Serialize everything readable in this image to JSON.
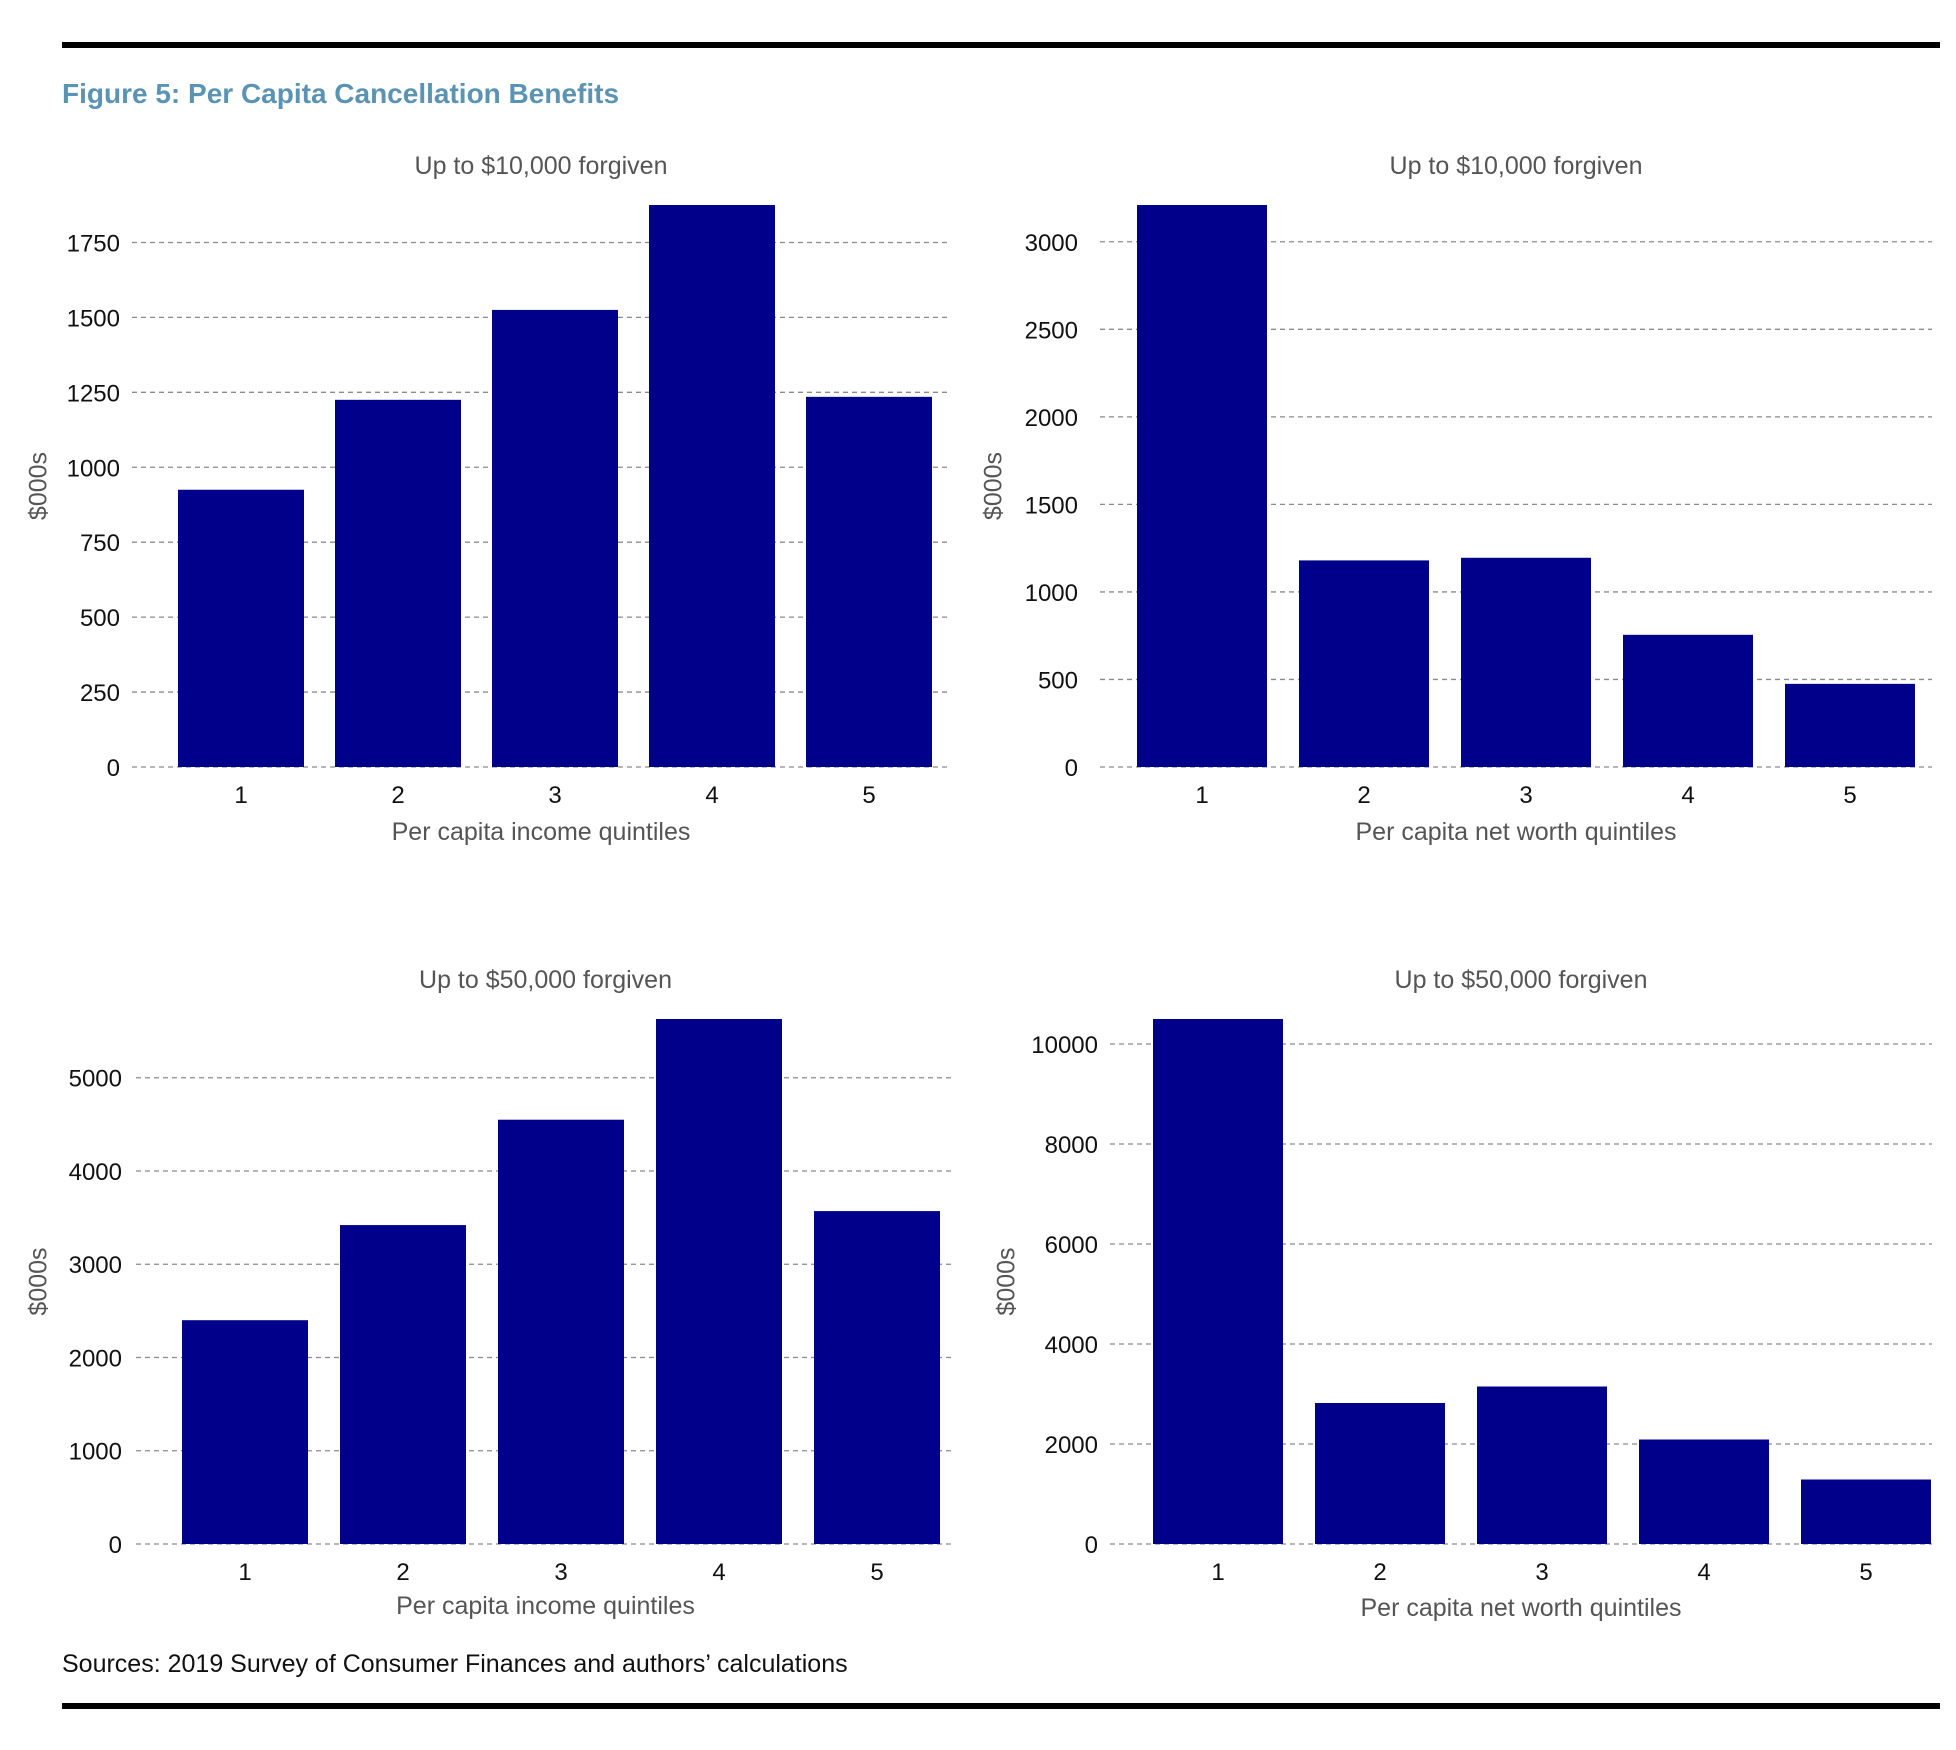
{
  "figure_title": "Figure 5: Per Capita Cancellation Benefits",
  "sources": "Sources: 2019 Survey of Consumer Finances and authors’ calculations",
  "colors": {
    "bar": "#00008b",
    "title": "#5b93b3",
    "grid": "#8c8c8c",
    "label": "#555555"
  },
  "chart_data": [
    {
      "type": "bar",
      "title": "Up to $10,000 forgiven",
      "xlabel": "Per capita income quintiles",
      "ylabel": "$000s",
      "categories": [
        "1",
        "2",
        "3",
        "4",
        "5"
      ],
      "values": [
        925,
        1225,
        1525,
        1875,
        1235
      ],
      "ylim": [
        0,
        1875
      ],
      "yticks": [
        0,
        250,
        500,
        750,
        1000,
        1250,
        1500,
        1750
      ],
      "grid": true
    },
    {
      "type": "bar",
      "title": "Up to $10,000 forgiven",
      "xlabel": "Per capita net worth quintiles",
      "ylabel": "$000s",
      "categories": [
        "1",
        "2",
        "3",
        "4",
        "5"
      ],
      "values": [
        3210,
        1180,
        1195,
        755,
        475
      ],
      "ylim": [
        0,
        3210
      ],
      "yticks": [
        0,
        500,
        1000,
        1500,
        2000,
        2500,
        3000
      ],
      "grid": true
    },
    {
      "type": "bar",
      "title": "Up to $50,000 forgiven",
      "xlabel": "Per capita income quintiles",
      "ylabel": "$000s",
      "categories": [
        "1",
        "2",
        "3",
        "4",
        "5"
      ],
      "values": [
        2400,
        3420,
        4550,
        5630,
        3570
      ],
      "ylim": [
        0,
        5630
      ],
      "yticks": [
        0,
        1000,
        2000,
        3000,
        4000,
        5000
      ],
      "grid": true
    },
    {
      "type": "bar",
      "title": "Up to $50,000 forgiven",
      "xlabel": "Per capita net worth quintiles",
      "ylabel": "$000s",
      "categories": [
        "1",
        "2",
        "3",
        "4",
        "5"
      ],
      "values": [
        10500,
        2820,
        3150,
        2090,
        1290
      ],
      "ylim": [
        0,
        10500
      ],
      "yticks": [
        0,
        2000,
        4000,
        6000,
        8000,
        10000
      ],
      "grid": true
    }
  ]
}
